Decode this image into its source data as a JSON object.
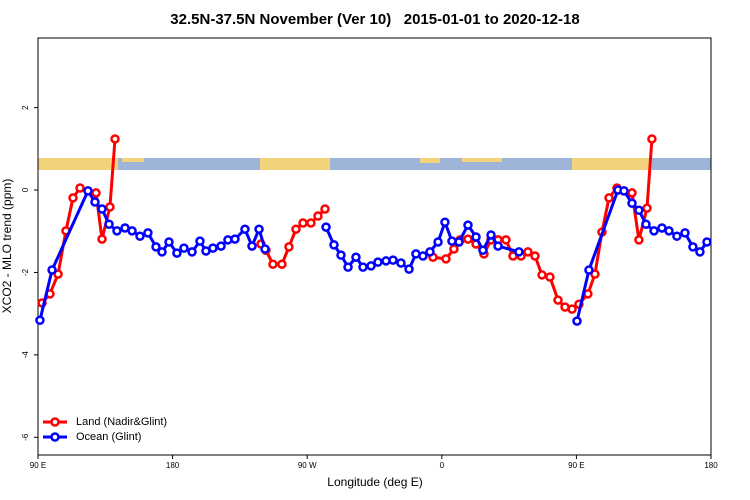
{
  "chart_data": {
    "type": "line",
    "title": "32.5N-37.5N November (Ver 10)   2015-01-01 to 2020-12-18",
    "x_label": "Longitude (deg E)",
    "y_label": "XCO2 - MLO trend (ppm)",
    "xlim": [
      90,
      540
    ],
    "ylim": [
      -6.43,
      3.69
    ],
    "xticks": [
      {
        "value": 90,
        "label": "90 E"
      },
      {
        "value": 180,
        "label": "180"
      },
      {
        "value": 270,
        "label": "90 W"
      },
      {
        "value": 360,
        "label": "0"
      },
      {
        "value": 450,
        "label": "90 E"
      },
      {
        "value": 540,
        "label": "180"
      }
    ],
    "yticks": [
      -6,
      -4,
      -2,
      0,
      2
    ],
    "legend": "bottom-left",
    "series": [
      {
        "name": "Land (Nadir&Glint)",
        "color": "#ff0000",
        "x": [
          92.7,
          98.0,
          103.4,
          108.7,
          113.4,
          118.1,
          123.4,
          128.8,
          132.8,
          138.1,
          141.5,
          null,
          239.1,
          242.4,
          247.1,
          253.1,
          257.8,
          262.5,
          267.2,
          272.5,
          277.2,
          281.9,
          null,
          354.1,
          362.8,
          368.1,
          372.2,
          377.5,
          382.9,
          388.2,
          392.9,
          397.6,
          402.9,
          407.6,
          413.0,
          417.6,
          422.3,
          427.0,
          432.3,
          437.7,
          442.4,
          447.1,
          451.7,
          457.7,
          462.4,
          467.1,
          471.8,
          477.1,
          481.8,
          487.2,
          491.8,
          497.2,
          500.5
        ],
        "values": [
          -2.74,
          -2.52,
          -2.04,
          -0.99,
          -0.19,
          0.05,
          -0.02,
          -0.07,
          -1.19,
          -0.41,
          1.24,
          null,
          -1.31,
          -1.46,
          -1.8,
          -1.8,
          -1.38,
          -0.95,
          -0.8,
          -0.8,
          -0.63,
          -0.46,
          null,
          -1.63,
          -1.67,
          -1.43,
          -1.21,
          -1.19,
          -1.31,
          -1.55,
          -1.21,
          -1.21,
          -1.21,
          -1.6,
          -1.6,
          -1.5,
          -1.6,
          -2.06,
          -2.11,
          -2.67,
          -2.84,
          -2.89,
          -2.77,
          -2.52,
          -2.04,
          -1.02,
          -0.19,
          0.05,
          -0.02,
          -0.07,
          -1.21,
          -0.44,
          1.24
        ]
      },
      {
        "name": "Ocean (Glint)",
        "color": "#0000ff",
        "x": [
          91.3,
          99.4,
          123.4,
          128.1,
          132.8,
          137.5,
          142.8,
          148.2,
          152.9,
          158.2,
          163.5,
          168.9,
          172.9,
          177.6,
          182.9,
          187.6,
          193.0,
          198.3,
          202.3,
          207.0,
          212.4,
          217.0,
          221.7,
          228.4,
          233.1,
          237.8,
          241.8,
          null,
          282.6,
          287.9,
          292.6,
          297.3,
          302.6,
          307.3,
          312.7,
          317.3,
          322.7,
          327.4,
          332.7,
          338.1,
          342.7,
          347.4,
          352.1,
          357.5,
          362.1,
          366.8,
          371.5,
          377.5,
          382.9,
          387.5,
          392.9,
          397.6,
          411.6,
          null,
          450.4,
          458.4,
          477.8,
          481.8,
          487.2,
          491.8,
          496.5,
          501.9,
          507.2,
          511.9,
          517.2,
          522.6,
          527.9,
          532.6,
          537.3
        ],
        "values": [
          -3.16,
          -1.94,
          -0.02,
          -0.29,
          -0.46,
          -0.83,
          -0.99,
          -0.92,
          -0.99,
          -1.12,
          -1.04,
          -1.38,
          -1.5,
          -1.26,
          -1.53,
          -1.41,
          -1.5,
          -1.24,
          -1.48,
          -1.41,
          -1.36,
          -1.21,
          -1.19,
          -0.95,
          -1.36,
          -0.95,
          -1.43,
          null,
          -0.9,
          -1.33,
          -1.58,
          -1.87,
          -1.63,
          -1.87,
          -1.84,
          -1.75,
          -1.72,
          -1.7,
          -1.77,
          -1.92,
          -1.55,
          -1.6,
          -1.5,
          -1.26,
          -0.78,
          -1.24,
          -1.26,
          -0.85,
          -1.14,
          -1.46,
          -1.09,
          -1.36,
          -1.5,
          null,
          -3.18,
          -1.94,
          0.0,
          -0.02,
          -0.32,
          -0.49,
          -0.83,
          -0.99,
          -0.92,
          -0.99,
          -1.12,
          -1.04,
          -1.38,
          -1.5,
          -1.26
        ]
      }
    ]
  }
}
